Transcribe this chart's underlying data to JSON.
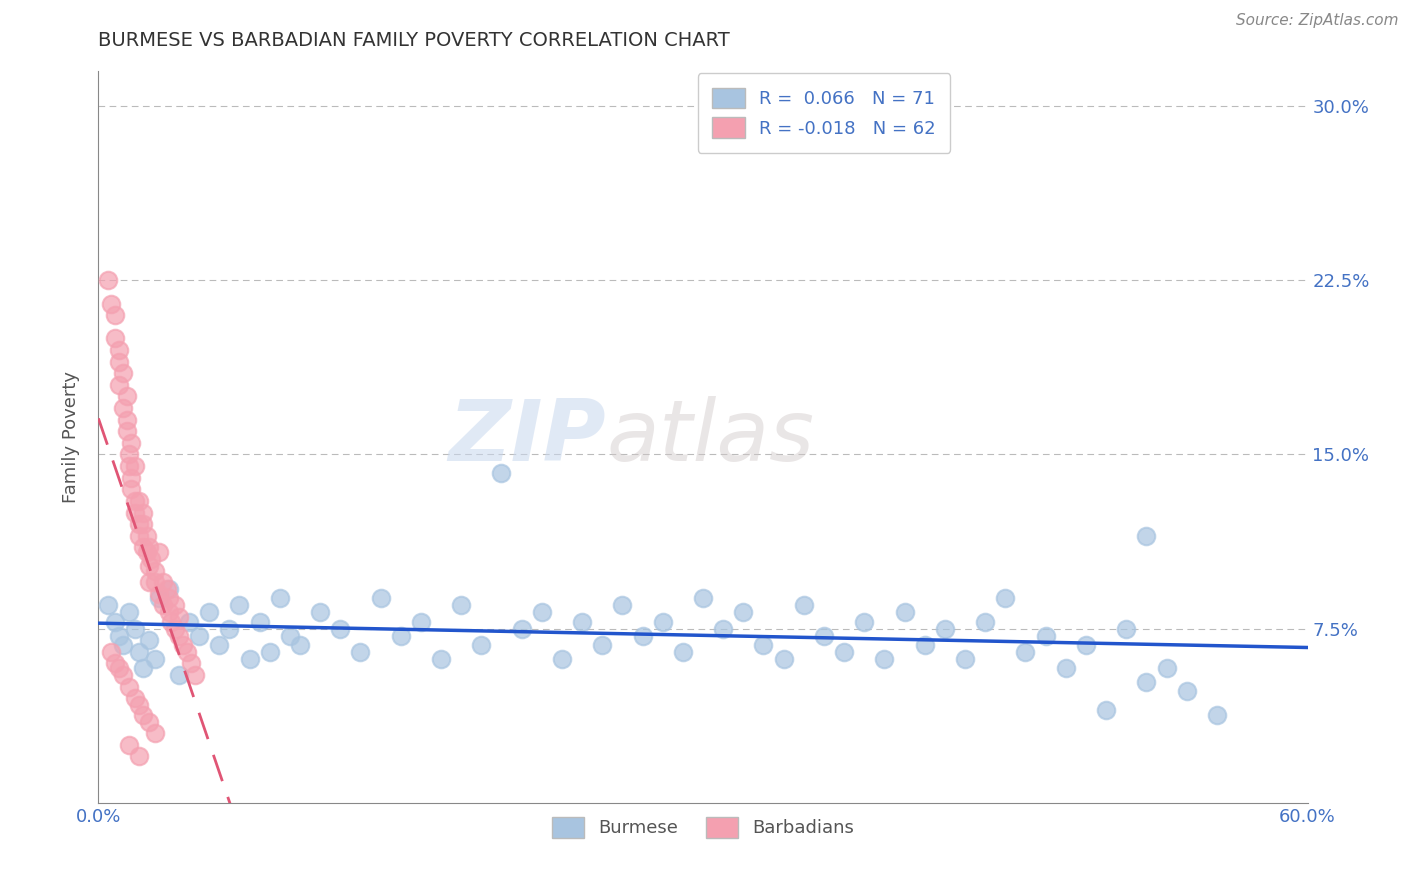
{
  "title": "BURMESE VS BARBADIAN FAMILY POVERTY CORRELATION CHART",
  "source_text": "Source: ZipAtlas.com",
  "ylabel": "Family Poverty",
  "xlim": [
    0.0,
    0.6
  ],
  "ylim": [
    0.0,
    0.315
  ],
  "yticks": [
    0.075,
    0.15,
    0.225,
    0.3
  ],
  "yticklabels": [
    "7.5%",
    "15.0%",
    "22.5%",
    "30.0%"
  ],
  "title_color": "#444444",
  "axis_color": "#4472c4",
  "watermark_zip": "ZIP",
  "watermark_atlas": "atlas",
  "legend_r1": "R =  0.066",
  "legend_n1": "N = 71",
  "legend_r2": "R = -0.018",
  "legend_n2": "N = 62",
  "burmese_color": "#a8c4e0",
  "barbadian_color": "#f4a0b0",
  "burmese_line_color": "#2255cc",
  "barbadian_line_color": "#e05575",
  "burmese_x": [
    0.005,
    0.008,
    0.01,
    0.012,
    0.015,
    0.018,
    0.02,
    0.022,
    0.025,
    0.028,
    0.03,
    0.035,
    0.04,
    0.045,
    0.05,
    0.055,
    0.06,
    0.065,
    0.07,
    0.075,
    0.08,
    0.085,
    0.09,
    0.095,
    0.1,
    0.11,
    0.12,
    0.13,
    0.14,
    0.15,
    0.16,
    0.17,
    0.18,
    0.19,
    0.2,
    0.21,
    0.22,
    0.23,
    0.24,
    0.25,
    0.26,
    0.27,
    0.28,
    0.29,
    0.3,
    0.31,
    0.32,
    0.33,
    0.34,
    0.35,
    0.36,
    0.37,
    0.38,
    0.39,
    0.4,
    0.41,
    0.42,
    0.43,
    0.44,
    0.45,
    0.46,
    0.47,
    0.48,
    0.49,
    0.5,
    0.51,
    0.52,
    0.53,
    0.54,
    0.555,
    0.52
  ],
  "burmese_y": [
    0.085,
    0.078,
    0.072,
    0.068,
    0.082,
    0.075,
    0.065,
    0.058,
    0.07,
    0.062,
    0.088,
    0.092,
    0.055,
    0.078,
    0.072,
    0.082,
    0.068,
    0.075,
    0.085,
    0.062,
    0.078,
    0.065,
    0.088,
    0.072,
    0.068,
    0.082,
    0.075,
    0.065,
    0.088,
    0.072,
    0.078,
    0.062,
    0.085,
    0.068,
    0.142,
    0.075,
    0.082,
    0.062,
    0.078,
    0.068,
    0.085,
    0.072,
    0.078,
    0.065,
    0.088,
    0.075,
    0.082,
    0.068,
    0.062,
    0.085,
    0.072,
    0.065,
    0.078,
    0.062,
    0.082,
    0.068,
    0.075,
    0.062,
    0.078,
    0.088,
    0.065,
    0.072,
    0.058,
    0.068,
    0.04,
    0.075,
    0.052,
    0.058,
    0.048,
    0.038,
    0.115
  ],
  "barbadian_x": [
    0.005,
    0.006,
    0.008,
    0.008,
    0.01,
    0.01,
    0.01,
    0.012,
    0.012,
    0.014,
    0.014,
    0.014,
    0.015,
    0.015,
    0.016,
    0.016,
    0.016,
    0.018,
    0.018,
    0.018,
    0.02,
    0.02,
    0.02,
    0.022,
    0.022,
    0.022,
    0.024,
    0.024,
    0.025,
    0.025,
    0.025,
    0.026,
    0.028,
    0.028,
    0.03,
    0.03,
    0.032,
    0.032,
    0.034,
    0.035,
    0.035,
    0.036,
    0.038,
    0.038,
    0.04,
    0.04,
    0.042,
    0.044,
    0.046,
    0.048,
    0.006,
    0.008,
    0.01,
    0.012,
    0.015,
    0.018,
    0.02,
    0.022,
    0.025,
    0.028,
    0.015,
    0.02
  ],
  "barbadian_y": [
    0.225,
    0.215,
    0.2,
    0.21,
    0.19,
    0.18,
    0.195,
    0.17,
    0.185,
    0.16,
    0.175,
    0.165,
    0.15,
    0.145,
    0.155,
    0.14,
    0.135,
    0.145,
    0.13,
    0.125,
    0.12,
    0.13,
    0.115,
    0.125,
    0.11,
    0.12,
    0.108,
    0.115,
    0.102,
    0.11,
    0.095,
    0.105,
    0.1,
    0.095,
    0.108,
    0.09,
    0.095,
    0.085,
    0.092,
    0.088,
    0.082,
    0.078,
    0.085,
    0.075,
    0.08,
    0.072,
    0.068,
    0.065,
    0.06,
    0.055,
    0.065,
    0.06,
    0.058,
    0.055,
    0.05,
    0.045,
    0.042,
    0.038,
    0.035,
    0.03,
    0.025,
    0.02
  ]
}
